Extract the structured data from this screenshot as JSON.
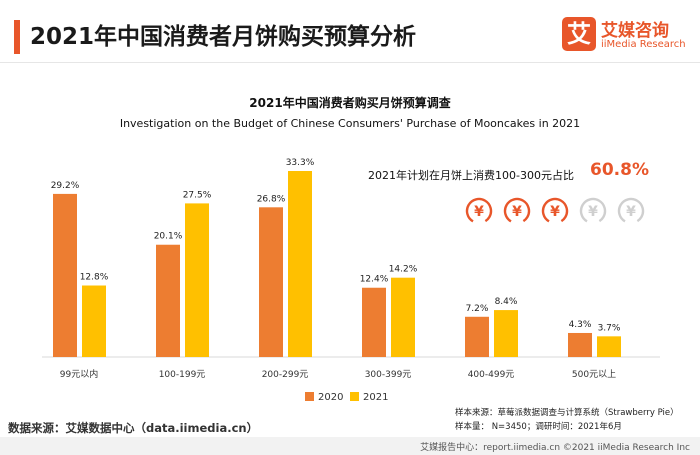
{
  "header": {
    "title": "2021年中国消费者月饼购买预算分析",
    "logo_mark": "艾",
    "logo_cn": "艾媒咨询",
    "logo_en": "iiMedia Research"
  },
  "chart_data": {
    "type": "bar",
    "title": "2021年中国消费者购买月饼预算调查",
    "subtitle": "Investigation on the Budget of Chinese Consumers' Purchase of Mooncakes in 2021",
    "categories": [
      "99元以内",
      "100-199元",
      "200-299元",
      "300-399元",
      "400-499元",
      "500元以上"
    ],
    "series": [
      {
        "name": "2020",
        "color": "#ed7d31",
        "values": [
          29.2,
          20.1,
          26.8,
          12.4,
          7.2,
          4.3
        ],
        "labels": [
          "29.2%",
          "20.1%",
          "26.8%",
          "12.4%",
          "7.2%",
          "4.3%"
        ]
      },
      {
        "name": "2021",
        "color": "#ffc000",
        "values": [
          12.8,
          27.5,
          33.3,
          14.2,
          8.4,
          3.7
        ],
        "labels": [
          "12.8%",
          "27.5%",
          "33.3%",
          "14.2%",
          "8.4%",
          "3.7%"
        ]
      }
    ],
    "ylim": [
      0,
      33.3
    ],
    "legend": "bottom"
  },
  "callout": {
    "text": "2021年计划在月饼上消费100-300元占比",
    "value": "60.8%",
    "coins_highlighted": 3,
    "coins_total": 5,
    "coin_glyph": "¥",
    "highlight_color": "#e8562a",
    "muted_color": "#cfcfcf"
  },
  "notes": {
    "sample_source": "样本来源：草莓派数据调查与计算系统（Strawberry Pie）",
    "sample_size": "样本量： N=3450；调研时间：2021年6月"
  },
  "data_source": "数据来源：艾媒数据中心（data.iimedia.cn）",
  "footer": "艾媒报告中心：report.iimedia.cn  ©2021  iiMedia Research  Inc"
}
